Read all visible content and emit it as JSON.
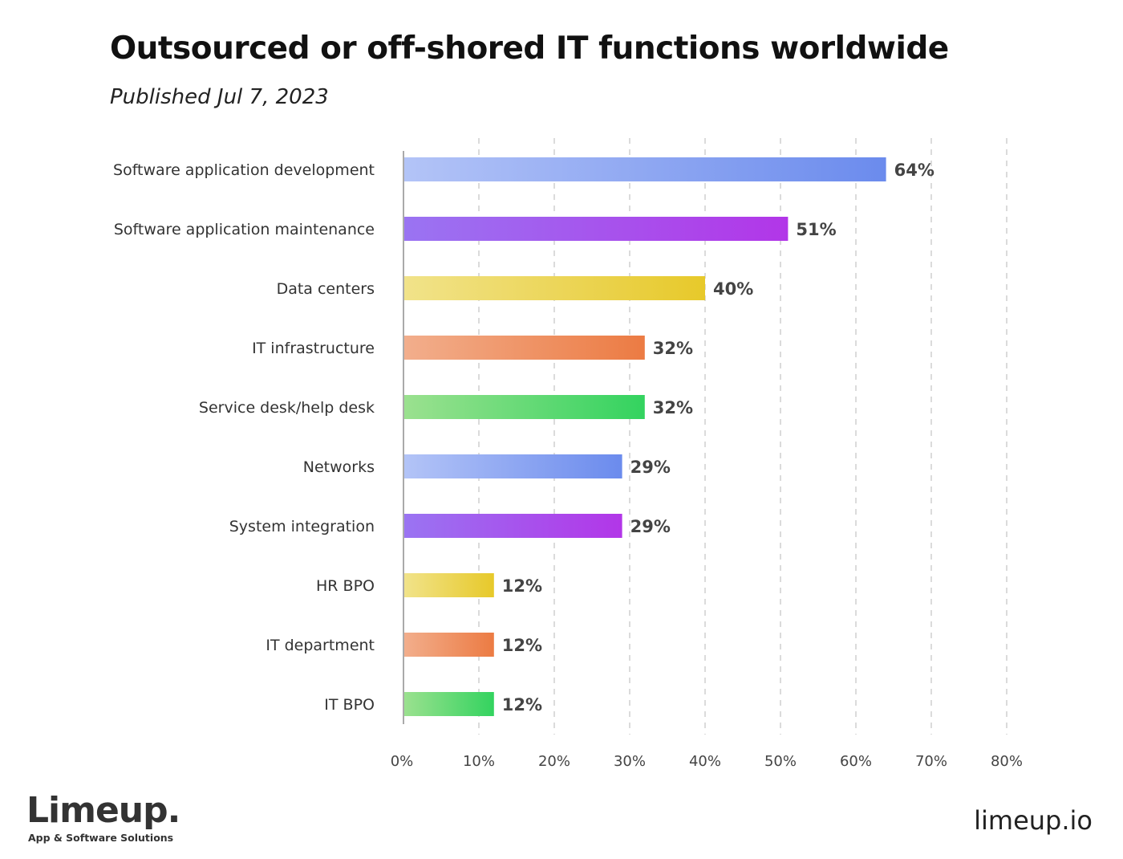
{
  "header": {
    "title": "Outsourced or off-shored IT functions worldwide",
    "subtitle": "Published Jul 7, 2023"
  },
  "footer": {
    "logo_text": "Limeup.",
    "tagline": "App & Software Solutions",
    "site": "limeup.io"
  },
  "colors": {
    "blue": [
      "#b3c4f7",
      "#6b8bed"
    ],
    "purple": [
      "#9a74f2",
      "#b236e8"
    ],
    "yellow": [
      "#f1e38a",
      "#e7c92a"
    ],
    "orange": [
      "#f2ae8c",
      "#ec7b43"
    ],
    "green": [
      "#9be18f",
      "#33d35f"
    ]
  },
  "chart_data": {
    "type": "bar",
    "orientation": "horizontal",
    "title": "Outsourced or off-shored IT functions worldwide",
    "subtitle": "Published Jul 7, 2023",
    "xlabel": "",
    "ylabel": "",
    "xlim": [
      0,
      80
    ],
    "x_ticks": [
      "0%",
      "10%",
      "20%",
      "30%",
      "40%",
      "50%",
      "60%",
      "70%",
      "80%"
    ],
    "grid": "vertical dashed",
    "categories": [
      "Software application development",
      "Software application maintenance",
      "Data centers",
      "IT infrastructure",
      "Service desk/help desk",
      "Networks",
      "System integration",
      "HR BPO",
      "IT department",
      "IT BPO"
    ],
    "values": [
      64,
      51,
      40,
      32,
      32,
      29,
      29,
      12,
      12,
      12
    ],
    "value_labels": [
      "64%",
      "51%",
      "40%",
      "32%",
      "32%",
      "29%",
      "29%",
      "12%",
      "12%",
      "12%"
    ],
    "bar_colors": [
      "blue",
      "purple",
      "yellow",
      "orange",
      "green",
      "blue",
      "purple",
      "yellow",
      "orange",
      "green"
    ]
  }
}
